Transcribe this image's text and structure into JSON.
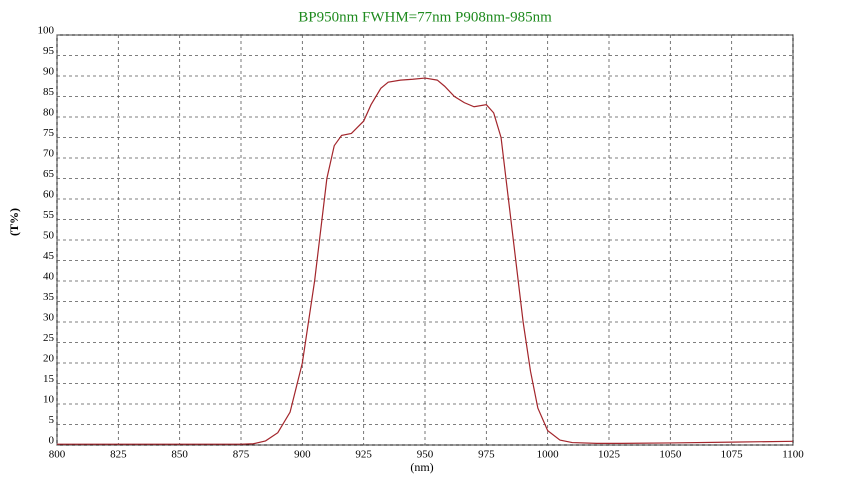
{
  "chart_data": {
    "type": "line",
    "title": "BP950nm FWHM=77nm P908nm-985nm",
    "x_label": "(nm)",
    "y_label": "(T%)",
    "x": [
      800,
      825,
      850,
      875,
      880,
      885,
      890,
      895,
      900,
      905,
      908,
      910,
      913,
      916,
      920,
      925,
      928,
      932,
      935,
      940,
      945,
      950,
      955,
      958,
      962,
      966,
      970,
      975,
      978,
      981,
      984,
      987,
      990,
      993,
      996,
      1000,
      1005,
      1010,
      1020,
      1030,
      1050,
      1075,
      1100
    ],
    "values": [
      0.2,
      0.2,
      0.2,
      0.2,
      0.3,
      1,
      3,
      8,
      20,
      40,
      55,
      65,
      73,
      75.5,
      76,
      79,
      83,
      87,
      88.5,
      89,
      89.2,
      89.5,
      89,
      87.5,
      85,
      83.5,
      82.5,
      83,
      81,
      75,
      60,
      45,
      30,
      18,
      9,
      3.5,
      1.2,
      0.6,
      0.4,
      0.4,
      0.5,
      0.7,
      0.9
    ],
    "color": "#a3262c",
    "xlim": [
      800,
      1100
    ],
    "xticks": [
      800,
      825,
      850,
      875,
      900,
      925,
      950,
      975,
      1000,
      1025,
      1050,
      1075,
      1100
    ],
    "ylim": [
      0,
      100
    ],
    "yticks": [
      0,
      5,
      10,
      15,
      20,
      25,
      30,
      35,
      40,
      45,
      50,
      55,
      60,
      65,
      70,
      75,
      80,
      85,
      90,
      95,
      100
    ],
    "grid": true
  }
}
